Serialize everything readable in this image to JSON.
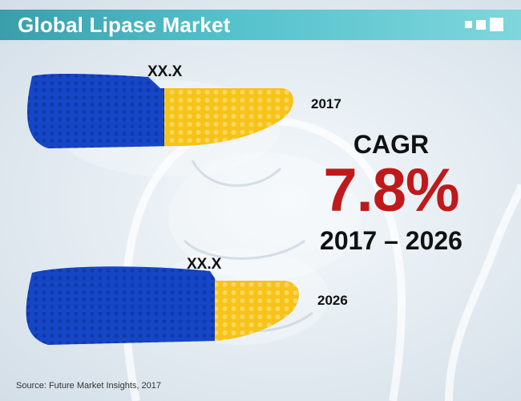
{
  "header": {
    "title": "Global Lipase Market"
  },
  "chart_data": {
    "type": "bar",
    "orientation": "horizontal",
    "categories": [
      "2017",
      "2026"
    ],
    "value_labels": [
      "XX.X",
      "XX.X"
    ],
    "colors": {
      "blue": "#1646c8",
      "yellow": "#f7c21a"
    },
    "title": "Global Lipase Market"
  },
  "cagr": {
    "label": "CAGR",
    "value": "7.8%",
    "period": "2017 – 2026",
    "color": "#c0191b"
  },
  "source": "Source: Future Market Insights, 2017",
  "colors": {
    "header_start": "#3a9eab",
    "header_end": "#7fd6dd"
  }
}
